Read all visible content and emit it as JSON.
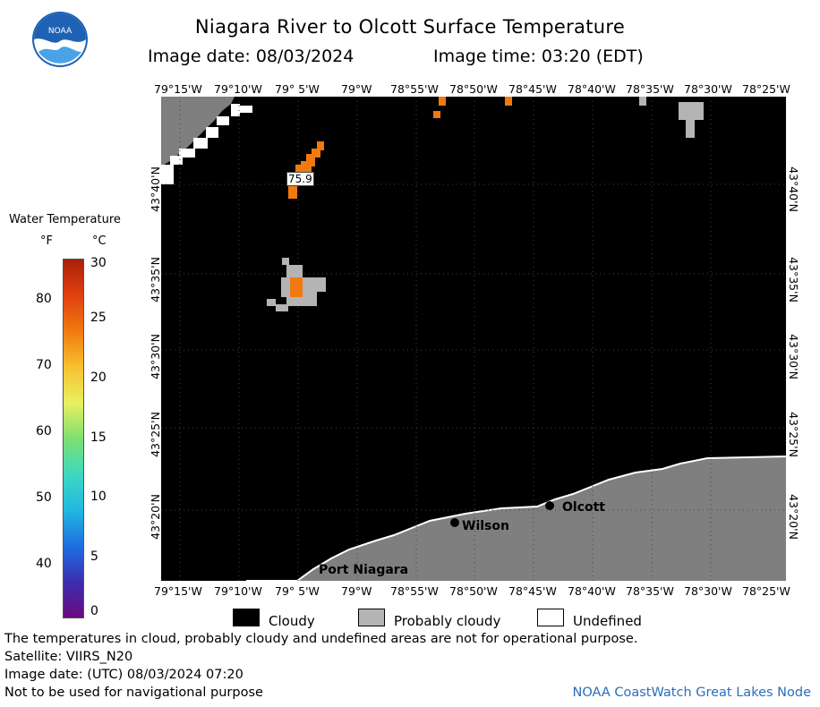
{
  "title": "Niagara River to Olcott Surface Temperature",
  "image_date": "Image date: 08/03/2024",
  "image_time": "Image time: 03:20 (EDT)",
  "logo_text": "NOAA",
  "lon_labels": [
    "79°15'W",
    "79°10'W",
    "79° 5'W",
    "79°W",
    "78°55'W",
    "78°50'W",
    "78°45'W",
    "78°40'W",
    "78°35'W",
    "78°30'W",
    "78°25'W"
  ],
  "lat_labels": [
    "43°40'N",
    "43°35'N",
    "43°30'N",
    "43°25'N",
    "43°20'N"
  ],
  "colorbar": {
    "title": "Water Temperature",
    "unit_f": "°F",
    "unit_c": "°C",
    "f_ticks": [
      "80",
      "70",
      "60",
      "50",
      "40"
    ],
    "c_ticks": [
      "30",
      "25",
      "20",
      "15",
      "10",
      "5",
      "0"
    ],
    "colors": [
      "#6a0a80",
      "#3a2fb0",
      "#1e6fe0",
      "#22b8e0",
      "#3ed8c0",
      "#7ee070",
      "#e8f060",
      "#f8c030",
      "#f07a10",
      "#e04010",
      "#a82008"
    ]
  },
  "places": {
    "olcott": "Olcott",
    "wilson": "Wilson",
    "port_niagara": "Port Niagara"
  },
  "temp_reading": "75.9",
  "legend": {
    "cloudy": "Cloudy",
    "probably_cloudy": "Probably cloudy",
    "undefined": "Undefined",
    "cloudy_color": "#000000",
    "probably_cloudy_color": "#b4b4b4",
    "undefined_color": "#ffffff"
  },
  "notes": {
    "disclaimer": "The temperatures in cloud, probably cloudy and undefined areas are not for operational purpose.",
    "satellite": "Satellite: VIIRS_N20",
    "utc_date": "Image date: (UTC) 08/03/2024  07:20",
    "nav": "Not to be used for navigational purpose",
    "credit": "NOAA CoastWatch Great Lakes Node"
  },
  "colors": {
    "land": "#7f7f7f",
    "cloud": "#000000",
    "water_warm": "#f07a10"
  }
}
